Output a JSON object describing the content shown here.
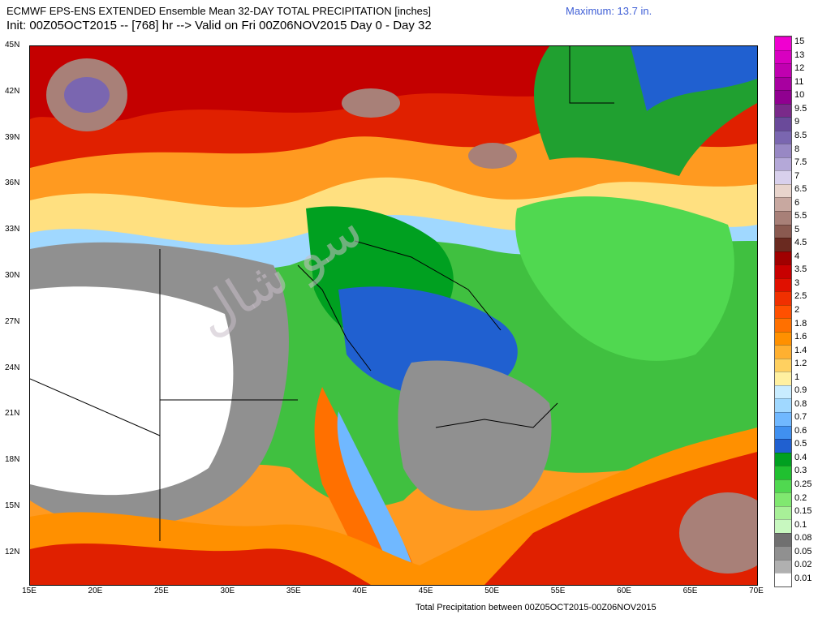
{
  "title_line1": "ECMWF EPS-ENS EXTENDED Ensemble Mean 32-DAY TOTAL PRECIPITATION [inches]",
  "title_line2": "Init: 00Z05OCT2015 -- [768] hr --> Valid on Fri 00Z06NOV2015  Day 0 - Day 32",
  "maximum": "Maximum:  13.7 in.",
  "footer": "Total Precipitation between 00Z05OCT2015-00Z06NOV2015",
  "lat_labels": [
    "45N",
    "42N",
    "39N",
    "36N",
    "33N",
    "30N",
    "27N",
    "24N",
    "21N",
    "18N",
    "15N",
    "12N"
  ],
  "lon_labels": [
    "15E",
    "20E",
    "25E",
    "30E",
    "35E",
    "40E",
    "45E",
    "50E",
    "55E",
    "60E",
    "65E",
    "70E"
  ],
  "legend": [
    {
      "label": "15",
      "color": "#f000d0"
    },
    {
      "label": "13",
      "color": "#d800c0"
    },
    {
      "label": "12",
      "color": "#c000b0"
    },
    {
      "label": "11",
      "color": "#a800a0"
    },
    {
      "label": "10",
      "color": "#900090"
    },
    {
      "label": "9.5",
      "color": "#7a2a8a"
    },
    {
      "label": "9",
      "color": "#6a4a9a"
    },
    {
      "label": "8.5",
      "color": "#7a66b0"
    },
    {
      "label": "8",
      "color": "#9888c4"
    },
    {
      "label": "7.5",
      "color": "#b4a8d8"
    },
    {
      "label": "7",
      "color": "#d8d0ec"
    },
    {
      "label": "6.5",
      "color": "#e8d4cc"
    },
    {
      "label": "6",
      "color": "#c8a8a0"
    },
    {
      "label": "5.5",
      "color": "#a88078"
    },
    {
      "label": "5",
      "color": "#8a5a50"
    },
    {
      "label": "4.5",
      "color": "#6a2a20"
    },
    {
      "label": "4",
      "color": "#a00000"
    },
    {
      "label": "3.5",
      "color": "#c80000"
    },
    {
      "label": "3",
      "color": "#e01000"
    },
    {
      "label": "2.5",
      "color": "#f03000"
    },
    {
      "label": "2",
      "color": "#ff5000"
    },
    {
      "label": "1.8",
      "color": "#ff7000"
    },
    {
      "label": "1.6",
      "color": "#ff9000"
    },
    {
      "label": "1.4",
      "color": "#ffb030"
    },
    {
      "label": "1.2",
      "color": "#ffd060"
    },
    {
      "label": "1",
      "color": "#fff0a0"
    },
    {
      "label": "0.9",
      "color": "#c8ecff"
    },
    {
      "label": "0.8",
      "color": "#a0d8ff"
    },
    {
      "label": "0.7",
      "color": "#70b8ff"
    },
    {
      "label": "0.6",
      "color": "#4090f0"
    },
    {
      "label": "0.5",
      "color": "#2060d0"
    },
    {
      "label": "0.4",
      "color": "#00a020"
    },
    {
      "label": "0.3",
      "color": "#20c030"
    },
    {
      "label": "0.25",
      "color": "#50d850"
    },
    {
      "label": "0.2",
      "color": "#80e870"
    },
    {
      "label": "0.15",
      "color": "#a8f098"
    },
    {
      "label": "0.1",
      "color": "#c8f8c0"
    },
    {
      "label": "0.08",
      "color": "#707070"
    },
    {
      "label": "0.05",
      "color": "#909090"
    },
    {
      "label": "0.02",
      "color": "#b0b0b0"
    },
    {
      "label": "0.01",
      "color": "#ffffff"
    }
  ]
}
